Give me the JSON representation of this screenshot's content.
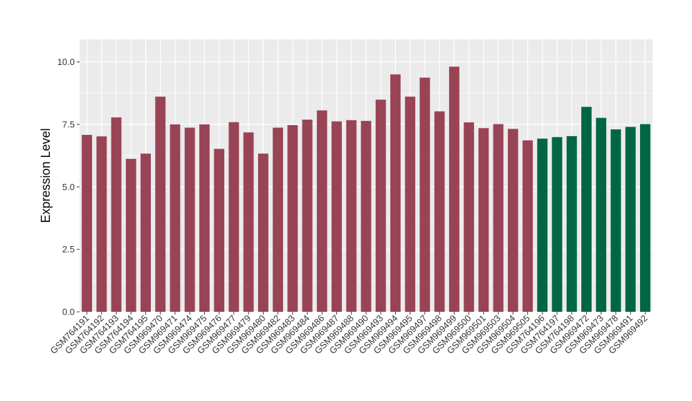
{
  "chart_data": {
    "type": "bar",
    "ylabel": "Expression Level",
    "xlabel": "",
    "ylim": [
      0,
      10.9
    ],
    "yticks": [
      0,
      2.5,
      5,
      7.5,
      10
    ],
    "ytick_labels": [
      "0.0",
      "2.5",
      "5.0",
      "7.5",
      "10.0"
    ],
    "grid": true,
    "colors": {
      "group1": "#994455",
      "group2": "#006644",
      "panel": "#ebebeb",
      "grid": "#ffffff"
    },
    "categories": [
      "GSM764191",
      "GSM764192",
      "GSM764193",
      "GSM764194",
      "GSM764195",
      "GSM969470",
      "GSM969471",
      "GSM969474",
      "GSM969475",
      "GSM969476",
      "GSM969477",
      "GSM969479",
      "GSM969480",
      "GSM969482",
      "GSM969483",
      "GSM969484",
      "GSM969486",
      "GSM969487",
      "GSM969488",
      "GSM969490",
      "GSM969493",
      "GSM969494",
      "GSM969495",
      "GSM969497",
      "GSM969498",
      "GSM969499",
      "GSM969500",
      "GSM969501",
      "GSM969503",
      "GSM969504",
      "GSM969505",
      "GSM764196",
      "GSM764197",
      "GSM764198",
      "GSM969472",
      "GSM969473",
      "GSM969478",
      "GSM969491",
      "GSM969492"
    ],
    "values": [
      7.08,
      7.02,
      7.78,
      6.12,
      6.33,
      8.61,
      7.5,
      7.37,
      7.5,
      6.52,
      7.59,
      7.18,
      6.33,
      7.37,
      7.47,
      7.69,
      8.06,
      7.62,
      7.67,
      7.64,
      8.49,
      9.5,
      8.61,
      9.37,
      8.02,
      9.81,
      7.58,
      7.35,
      7.51,
      7.32,
      6.86,
      6.93,
      6.99,
      7.03,
      8.2,
      7.76,
      7.3,
      7.4,
      7.51
    ],
    "groups": [
      1,
      1,
      1,
      1,
      1,
      1,
      1,
      1,
      1,
      1,
      1,
      1,
      1,
      1,
      1,
      1,
      1,
      1,
      1,
      1,
      1,
      1,
      1,
      1,
      1,
      1,
      1,
      1,
      1,
      1,
      1,
      2,
      2,
      2,
      2,
      2,
      2,
      2,
      2
    ]
  }
}
